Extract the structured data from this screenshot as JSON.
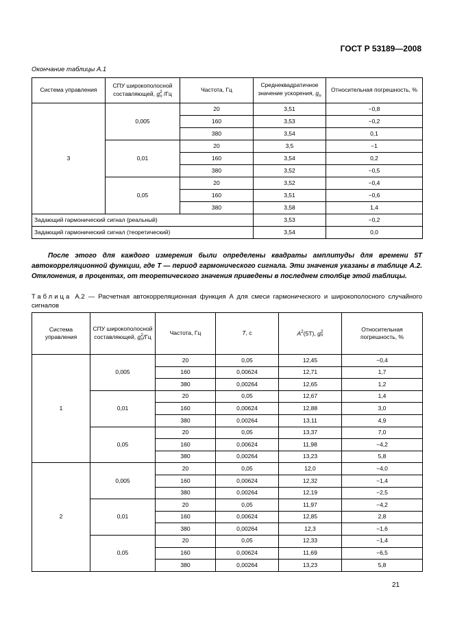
{
  "header": {
    "title": "ГОСТ Р 53189—2008"
  },
  "table1": {
    "caption": "Окончание таблицы А.1",
    "columns": {
      "system": "Система управления",
      "spu": {
        "text": "СПУ широкополосной составляющей,",
        "var": "g",
        "sup": "2",
        "sub": "n",
        "unit": "/Гц"
      },
      "freq": "Частота, Гц",
      "accel": {
        "text": "Среднеквадратичное значение ускорения,",
        "var": "g",
        "sub": "n"
      },
      "error": "Относительная погрешность, %"
    },
    "systems": [
      {
        "name": "3",
        "groups": [
          {
            "spu": "0,005",
            "rows": [
              [
                "20",
                "3,51",
                "−0,8"
              ],
              [
                "160",
                "3,53",
                "−0,2"
              ],
              [
                "380",
                "3,54",
                "0,1"
              ]
            ]
          },
          {
            "spu": "0,01",
            "rows": [
              [
                "20",
                "3,5",
                "−1"
              ],
              [
                "160",
                "3,54",
                "0,2"
              ],
              [
                "380",
                "3,52",
                "−0,5"
              ]
            ]
          },
          {
            "spu": "0,05",
            "rows": [
              [
                "20",
                "3,52",
                "−0,4"
              ],
              [
                "160",
                "3,51",
                "−0,6"
              ],
              [
                "380",
                "3,58",
                "1,4"
              ]
            ]
          }
        ]
      }
    ],
    "footer_rows": [
      [
        "Задающий гармонический сигнал (реальный)",
        "3,53",
        "−0,2"
      ],
      [
        "Задающий гармонический сигнал (теоретический)",
        "3,54",
        "0,0"
      ]
    ]
  },
  "paragraph": "После этого для каждого измерения были определены квадраты амплитуды для времени 5T автокорреляционной функции, где T — период гармонического сигнала. Эти значения указаны в таблице А.2. Отклонения, в процентах, от теоретического значения приведены в последнем столбце этой таблицы.",
  "table2": {
    "caption_label": "Таблица",
    "caption": "А.2 — Расчетная автокорреляционная функция A для смеси гармонического и широкополосного случайного сигналов",
    "columns": {
      "system": "Система управления",
      "spu": {
        "text": "СПУ широкополосной составляющей,",
        "var": "g",
        "sup": "2",
        "sub": "n",
        "unit": "/Гц"
      },
      "freq": "Частота, Гц",
      "period": {
        "var": "T",
        "unit": ", с"
      },
      "amp": {
        "var": "A",
        "sup": "2",
        "text": "(5T),",
        "var2": "g",
        "sup2": "2",
        "sub2": "n"
      },
      "error": "Относительная погрешность, %"
    },
    "systems": [
      {
        "name": "1",
        "groups": [
          {
            "spu": "0,005",
            "rows": [
              [
                "20",
                "0,05",
                "12,45",
                "−0,4"
              ],
              [
                "160",
                "0,00624",
                "12,71",
                "1,7"
              ],
              [
                "380",
                "0,00264",
                "12,65",
                "1,2"
              ]
            ]
          },
          {
            "spu": "0,01",
            "rows": [
              [
                "20",
                "0,05",
                "12,67",
                "1,4"
              ],
              [
                "160",
                "0,00624",
                "12,88",
                "3,0"
              ],
              [
                "380",
                "0,00264",
                "13,11",
                "4,9"
              ]
            ]
          },
          {
            "spu": "0,05",
            "rows": [
              [
                "20",
                "0,05",
                "13,37",
                "7,0"
              ],
              [
                "160",
                "0,00624",
                "11,98",
                "−4,2"
              ],
              [
                "380",
                "0,00264",
                "13,23",
                "5,8"
              ]
            ]
          }
        ]
      },
      {
        "name": "2",
        "groups": [
          {
            "spu": "0,005",
            "rows": [
              [
                "20",
                "0,05",
                "12,0",
                "−4,0"
              ],
              [
                "160",
                "0,00624",
                "12,32",
                "−1,4"
              ],
              [
                "380",
                "0,00264",
                "12,19",
                "−2,5"
              ]
            ]
          },
          {
            "spu": "0,01",
            "rows": [
              [
                "20",
                "0,05",
                "11,97",
                "−4,2"
              ],
              [
                "160",
                "0,00624",
                "12,85",
                "2,8"
              ],
              [
                "380",
                "0,00264",
                "12,3",
                "−1,6"
              ]
            ]
          },
          {
            "spu": "0,05",
            "rows": [
              [
                "20",
                "0,05",
                "12,33",
                "−1,4"
              ],
              [
                "160",
                "0,00624",
                "11,69",
                "−6,5"
              ],
              [
                "380",
                "0,00264",
                "13,23",
                "5,8"
              ]
            ]
          }
        ]
      }
    ]
  },
  "page_number": "21"
}
